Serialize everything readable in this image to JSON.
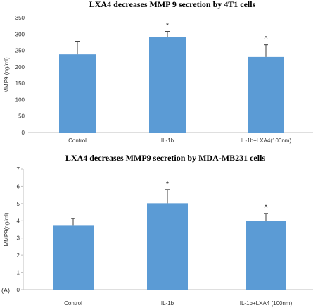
{
  "chart_data": [
    {
      "type": "bar",
      "title": "LXA4 decreases MMP 9 secretion by  4T1 cells",
      "ylabel": "MMP9 (ng/ml)",
      "xlabel": "",
      "categories": [
        "Control",
        "IL-1b",
        "IL-1b+LXA4(100nm)"
      ],
      "values": [
        238,
        290,
        230
      ],
      "errors": [
        40,
        18,
        37
      ],
      "annotations": [
        "",
        "*",
        "^"
      ],
      "ylim": [
        0,
        350
      ],
      "yticks": [
        0,
        50,
        100,
        150,
        200,
        250,
        300,
        350
      ],
      "bar_color": "#5B9BD5",
      "grid": false
    },
    {
      "type": "bar",
      "title": "LXA4 decreases MMP9 secretion  by  MDA-MB231 cells",
      "ylabel": "MMP9(ng/ml)",
      "xlabel": "",
      "categories": [
        "Control",
        "IL-1b",
        "IL-1b+LXA4 (100nm)"
      ],
      "values": [
        3.75,
        5.02,
        3.98
      ],
      "errors": [
        0.38,
        0.8,
        0.45
      ],
      "annotations": [
        "",
        "*",
        "^"
      ],
      "ylim": [
        0,
        7
      ],
      "yticks": [
        0,
        1,
        2,
        3,
        4,
        5,
        6,
        7
      ],
      "bar_color": "#5B9BD5",
      "grid": false
    }
  ],
  "panel_label": "(A)"
}
